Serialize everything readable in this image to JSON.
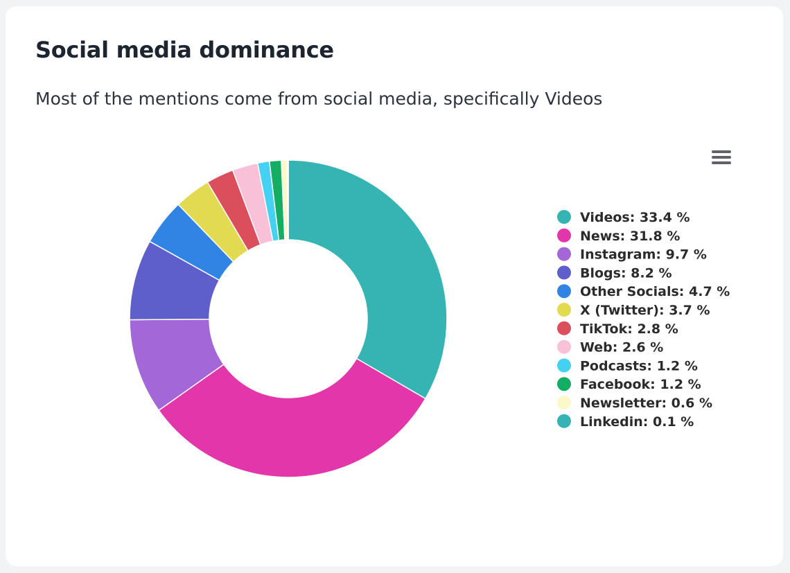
{
  "card": {
    "title": "Social media dominance",
    "subtitle": "Most of the mentions come from social media, specifically Videos"
  },
  "menu": {
    "icon": "hamburger-menu-icon"
  },
  "chart_data": {
    "type": "pie",
    "variant": "donut",
    "legend_position": "right",
    "unit": "%",
    "categories": [
      "Videos",
      "News",
      "Instagram",
      "Blogs",
      "Other Socials",
      "X (Twitter)",
      "TikTok",
      "Web",
      "Podcasts",
      "Facebook",
      "Newsletter",
      "Linkedin"
    ],
    "values": [
      33.4,
      31.8,
      9.7,
      8.2,
      4.7,
      3.7,
      2.8,
      2.6,
      1.2,
      1.2,
      0.6,
      0.1
    ],
    "colors": [
      "#36b4b4",
      "#e236aa",
      "#a367d8",
      "#5e5fca",
      "#2f84e4",
      "#e2db52",
      "#db4f5d",
      "#f8c1d8",
      "#45d1f2",
      "#14ad64",
      "#fbf8c9",
      "#36b4b4"
    ],
    "legend_labels": [
      "Videos: 33.4 %",
      "News: 31.8 %",
      "Instagram: 9.7 %",
      "Blogs: 8.2 %",
      "Other Socials: 4.7 %",
      "X (Twitter): 3.7 %",
      "TikTok: 2.8 %",
      "Web: 2.6 %",
      "Podcasts: 1.2 %",
      "Facebook: 1.2 %",
      "Newsletter: 0.6 %",
      "Linkedin: 0.1 %"
    ]
  }
}
